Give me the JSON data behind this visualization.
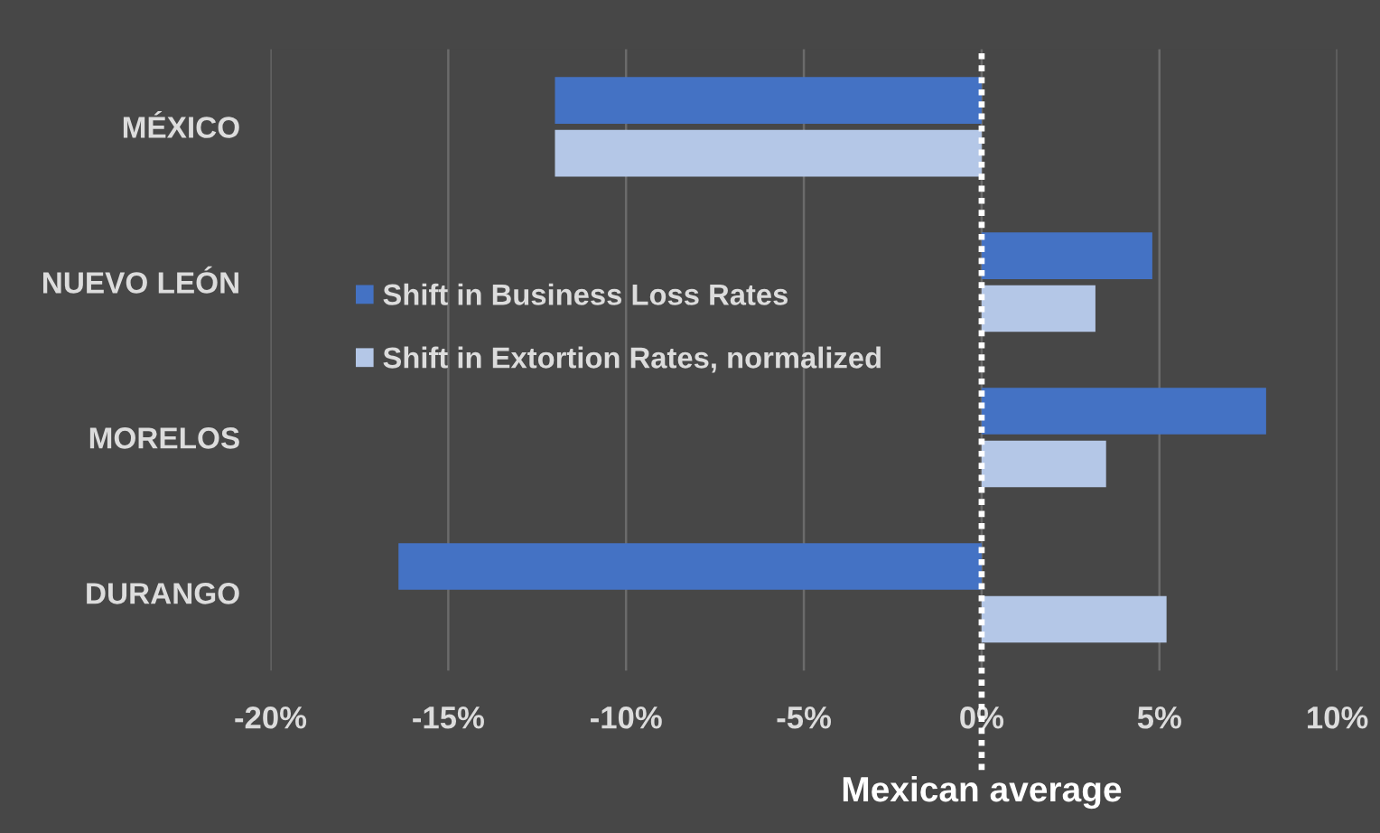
{
  "chart_data": {
    "type": "bar",
    "orientation": "horizontal",
    "categories": [
      "MÉXICO",
      "NUEVO LEÓN",
      "MORELOS",
      "DURANGO"
    ],
    "series": [
      {
        "name": "Shift in Business Loss Rates",
        "color": "#4472c4",
        "values": [
          -12.0,
          4.8,
          8.0,
          -16.4
        ]
      },
      {
        "name": "Shift in Extortion Rates, normalized",
        "color": "#b4c7e7",
        "values": [
          -12.0,
          3.2,
          3.5,
          5.2
        ]
      }
    ],
    "xlim": [
      -20,
      10
    ],
    "xticks": [
      {
        "value": -20,
        "label": "-20%"
      },
      {
        "value": -15,
        "label": "-15%"
      },
      {
        "value": -10,
        "label": "-10%"
      },
      {
        "value": -5,
        "label": "-5%"
      },
      {
        "value": 0,
        "label": "0%"
      },
      {
        "value": 5,
        "label": "5%"
      },
      {
        "value": 10,
        "label": "10%"
      }
    ],
    "grid": "x",
    "legend": "left",
    "ref_lines": [
      {
        "axis": "x",
        "value": 0,
        "label": "Mexican average",
        "color": "#ffffff",
        "line_style": "dotted"
      }
    ]
  }
}
